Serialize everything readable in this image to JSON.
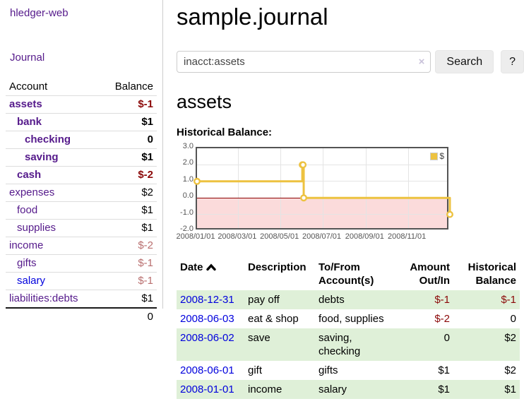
{
  "app": {
    "brand": "hledger-web",
    "nav_journal": "Journal"
  },
  "sidebar": {
    "headers": {
      "account": "Account",
      "balance": "Balance"
    },
    "accounts": [
      {
        "account": "assets",
        "balance": "$-1",
        "depth": 1,
        "emphasis": true,
        "balance_class": "neg-strong",
        "link_class": "purple"
      },
      {
        "account": "bank",
        "balance": "$1",
        "depth": 2,
        "emphasis": true,
        "balance_class": "",
        "link_class": "purple"
      },
      {
        "account": "checking",
        "balance": "0",
        "depth": 3,
        "emphasis": true,
        "balance_class": "",
        "link_class": "purple"
      },
      {
        "account": "saving",
        "balance": "$1",
        "depth": 3,
        "emphasis": true,
        "balance_class": "",
        "link_class": "purple"
      },
      {
        "account": "cash",
        "balance": "$-2",
        "depth": 2,
        "emphasis": true,
        "balance_class": "neg-strong",
        "link_class": "purple"
      },
      {
        "account": "expenses",
        "balance": "$2",
        "depth": 1,
        "emphasis": false,
        "balance_class": "",
        "link_class": "purple"
      },
      {
        "account": "food",
        "balance": "$1",
        "depth": 2,
        "emphasis": false,
        "balance_class": "",
        "link_class": "purple"
      },
      {
        "account": "supplies",
        "balance": "$1",
        "depth": 2,
        "emphasis": false,
        "balance_class": "",
        "link_class": "purple"
      },
      {
        "account": "income",
        "balance": "$-2",
        "depth": 1,
        "emphasis": false,
        "balance_class": "neg-weak",
        "link_class": "purple"
      },
      {
        "account": "gifts",
        "balance": "$-1",
        "depth": 2,
        "emphasis": false,
        "balance_class": "neg-weak",
        "link_class": "purple"
      },
      {
        "account": "salary",
        "balance": "$-1",
        "depth": 2,
        "emphasis": false,
        "balance_class": "neg-weak",
        "link_class": "blue"
      },
      {
        "account": "liabilities:debts",
        "balance": "$1",
        "depth": 1,
        "emphasis": false,
        "balance_class": "",
        "link_class": "purple"
      }
    ],
    "total": "0"
  },
  "header": {
    "title": "sample.journal"
  },
  "search": {
    "value": "inacct:assets",
    "clear_icon": "×",
    "search_label": "Search",
    "help_label": "?"
  },
  "account_page": {
    "title": "assets",
    "chart_label": "Historical Balance:"
  },
  "chart_data": {
    "type": "line",
    "title": "Historical Balance:",
    "steps": true,
    "grid": true,
    "ylim": [
      -2,
      3
    ],
    "x_range_days": 365,
    "yticks": [
      "3.0",
      "2.0",
      "1.0",
      "0.0",
      "-1.0",
      "-2.0"
    ],
    "ytick_values": [
      3,
      2,
      1,
      0,
      -1,
      -2
    ],
    "xticks": [
      {
        "label": "2008/01/01",
        "day": 0
      },
      {
        "label": "2008/03/01",
        "day": 60
      },
      {
        "label": "2008/05/01",
        "day": 121
      },
      {
        "label": "2008/07/01",
        "day": 182
      },
      {
        "label": "2008/09/01",
        "day": 244
      },
      {
        "label": "2008/11/01",
        "day": 305
      }
    ],
    "series": [
      {
        "name": "$",
        "color": "#edc240",
        "points": [
          {
            "date": "2008-01-01",
            "day": 0,
            "value": 1
          },
          {
            "date": "2008-06-01",
            "day": 152,
            "value": 2
          },
          {
            "date": "2008-06-02",
            "day": 153,
            "value": 2
          },
          {
            "date": "2008-06-03",
            "day": 154,
            "value": 0
          },
          {
            "date": "2008-12-31",
            "day": 365,
            "value": -1
          }
        ]
      }
    ],
    "legend": {
      "label": "$",
      "position": "top-right"
    },
    "zero_line_color": "#8b0000",
    "negative_region_color": "#fbdbdb"
  },
  "register": {
    "headers": [
      {
        "lines": [
          "Date"
        ],
        "align": "left",
        "sort": "ascending"
      },
      {
        "lines": [
          "Description"
        ],
        "align": "left"
      },
      {
        "lines": [
          "To/From",
          "Account(s)"
        ],
        "align": "left"
      },
      {
        "lines": [
          "Amount",
          "Out/In"
        ],
        "align": "right"
      },
      {
        "lines": [
          "Historical",
          "Balance"
        ],
        "align": "right"
      }
    ],
    "rows": [
      {
        "date": "2008-12-31",
        "description": "pay off",
        "accounts_lines": [
          "debts"
        ],
        "amount": "$-1",
        "amount_class": "neg",
        "balance": "$-1",
        "balance_class": "neg",
        "shaded": true
      },
      {
        "date": "2008-06-03",
        "description": "eat & shop",
        "accounts_lines": [
          "food, supplies"
        ],
        "amount": "$-2",
        "amount_class": "neg",
        "balance": "0",
        "balance_class": "",
        "shaded": false
      },
      {
        "date": "2008-06-02",
        "description": "save",
        "accounts_lines": [
          "saving,",
          "checking"
        ],
        "amount": "0",
        "amount_class": "",
        "balance": "$2",
        "balance_class": "",
        "shaded": true
      },
      {
        "date": "2008-06-01",
        "description": "gift",
        "accounts_lines": [
          "gifts"
        ],
        "amount": "$1",
        "amount_class": "",
        "balance": "$2",
        "balance_class": "",
        "shaded": false
      },
      {
        "date": "2008-01-01",
        "description": "income",
        "accounts_lines": [
          "salary"
        ],
        "amount": "$1",
        "amount_class": "",
        "balance": "$1",
        "balance_class": "",
        "shaded": true
      }
    ]
  }
}
